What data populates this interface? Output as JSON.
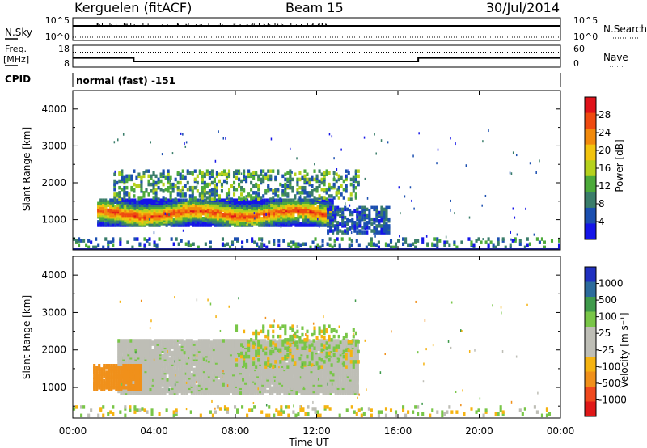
{
  "header": {
    "station": "Kerguelen (fitACF)",
    "beam": "Beam 15",
    "date": "30/Jul/2014"
  },
  "nsky_panel": {
    "left_label": "N.Sky",
    "right_label": "N.Search",
    "left_ticks": [
      "10^5",
      "10^0"
    ],
    "right_ticks": [
      "10^5",
      "10^0"
    ],
    "nsky_level": 10000,
    "nsearch_level": 10000
  },
  "freq_panel": {
    "left_label": "Freq.",
    "left_unit": "[MHz]",
    "right_label": "Nave",
    "left_ticks": [
      "18",
      "8"
    ],
    "right_ticks": [
      "60",
      "0"
    ],
    "freq_ylim": [
      8,
      18
    ],
    "nave_ylim": [
      0,
      60
    ],
    "freq_series": [
      [
        0.0,
        12.2
      ],
      [
        3.0,
        12.2
      ],
      [
        3.0,
        10.6
      ],
      [
        17.0,
        10.6
      ],
      [
        17.0,
        12.2
      ],
      [
        24.0,
        12.2
      ]
    ],
    "nave_level": 41
  },
  "cpid_panel": {
    "label": "CPID",
    "text": "normal (fast) -151"
  },
  "power_panel": {
    "ylabel": "Slant Range [km]",
    "colorbar_label": "Power [dB]",
    "colorbar_ticks": [
      "28",
      "24",
      "20",
      "16",
      "12",
      "8",
      "4"
    ]
  },
  "velocity_panel": {
    "ylabel": "Slant Range [km]",
    "colorbar_label": "Velocity  [m s⁻¹]",
    "colorbar_ticks": [
      "1000",
      "500",
      "100",
      "25",
      "-25",
      "-100",
      "-500",
      "-1000"
    ]
  },
  "x_axis": {
    "label": "Time UT",
    "ticks": [
      "00:00",
      "04:00",
      "08:00",
      "12:00",
      "16:00",
      "20:00",
      "00:00"
    ]
  },
  "colors": {
    "power_scale": [
      "#1515e8",
      "#1b4fb0",
      "#3a7d6a",
      "#4caa3a",
      "#b5d11c",
      "#f2c40e",
      "#f28a0c",
      "#ef4a10",
      "#e0121a"
    ],
    "velocity_scale": [
      "#e01818",
      "#f0491d",
      "#f0901a",
      "#f5b311",
      "#bebeb6",
      "#bebeb6",
      "#79c648",
      "#3f9a4b",
      "#2c6b9c",
      "#2030c0"
    ],
    "ground_scatter": "#bebeb6"
  },
  "chart_data": [
    {
      "type": "heatmap",
      "title": "Power [dB]",
      "xlabel": "Time UT",
      "ylabel": "Slant Range [km]",
      "xlim_hours": [
        0,
        24
      ],
      "ylim": [
        180,
        4500
      ],
      "y_ticks": [
        1000,
        2000,
        3000,
        4000
      ],
      "color_range": [
        0,
        32
      ],
      "regions": [
        {
          "name": "main echo band",
          "t_start": 1.2,
          "t_end": 12.8,
          "r_low": 800,
          "r_high": 1500,
          "peak_db": 28
        },
        {
          "name": "upper echoes",
          "t_start": 2.0,
          "t_end": 14.0,
          "r_low": 1500,
          "r_high": 2300,
          "peak_db": 14
        },
        {
          "name": "late echoes",
          "t_start": 12.5,
          "t_end": 15.5,
          "r_low": 600,
          "r_high": 1300,
          "peak_db": 8
        },
        {
          "name": "near-range clutter",
          "t_start": 0.0,
          "t_end": 24.0,
          "r_low": 200,
          "r_high": 450,
          "peak_db": 10
        }
      ]
    },
    {
      "type": "heatmap",
      "title": "Velocity [m s-1]",
      "xlabel": "Time UT",
      "ylabel": "Slant Range [km]",
      "xlim_hours": [
        0,
        24
      ],
      "ylim": [
        180,
        4500
      ],
      "y_ticks": [
        1000,
        2000,
        3000,
        4000
      ],
      "color_range": [
        -1000,
        1000
      ],
      "regions": [
        {
          "name": "ground scatter",
          "t_start": 2.2,
          "t_end": 14.0,
          "r_low": 800,
          "r_high": 2200,
          "velocity": 0
        },
        {
          "name": "receding flow",
          "t_start": 1.0,
          "t_end": 3.4,
          "r_low": 900,
          "r_high": 1550,
          "velocity": -120
        },
        {
          "name": "approaching patches",
          "t_start": 8.0,
          "t_end": 14.0,
          "r_low": 1500,
          "r_high": 2600,
          "velocity": 80
        },
        {
          "name": "near-range clutter",
          "t_start": 0.0,
          "t_end": 24.0,
          "r_low": 200,
          "r_high": 450,
          "velocity": 0
        }
      ]
    }
  ]
}
